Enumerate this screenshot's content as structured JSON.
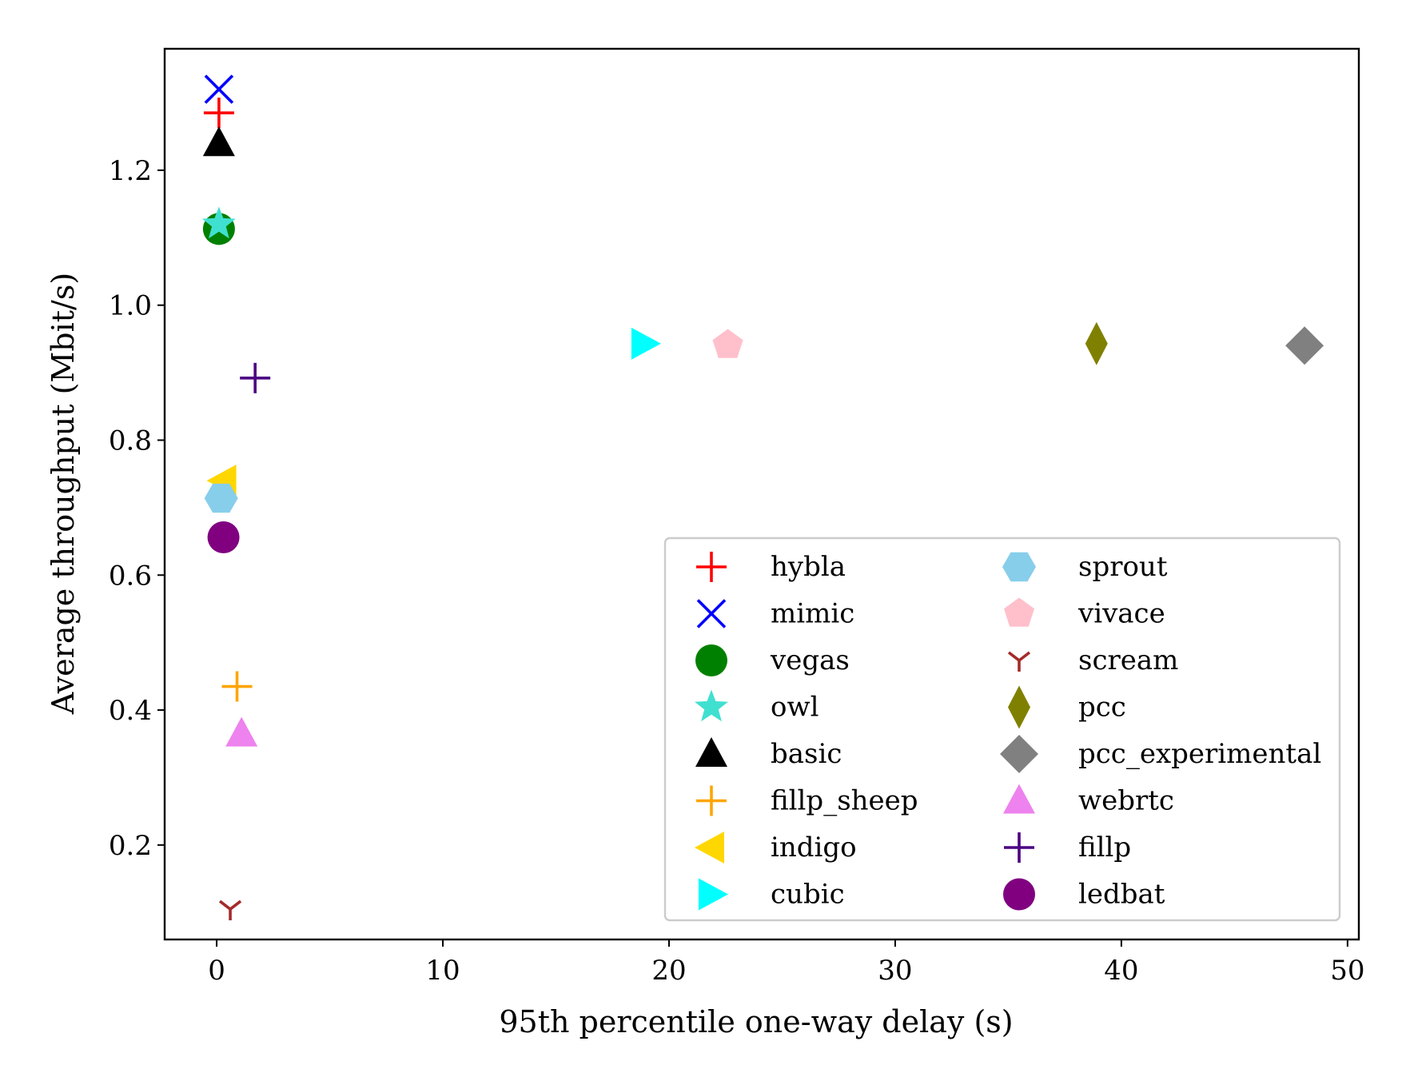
{
  "chart_data": {
    "type": "scatter",
    "xlabel": "95th percentile one-way delay (s)",
    "ylabel": "Average throughput (Mbit/s)",
    "xlim": [
      -2.3,
      50.5
    ],
    "ylim": [
      0.06,
      1.38
    ],
    "xticks": [
      0,
      10,
      20,
      30,
      40,
      50
    ],
    "yticks": [
      0.2,
      0.4,
      0.6,
      0.8,
      1.0,
      1.2
    ],
    "xtick_labels": [
      "0",
      "10",
      "20",
      "30",
      "40",
      "50"
    ],
    "ytick_labels": [
      "0.2",
      "0.4",
      "0.6",
      "0.8",
      "1.0",
      "1.2"
    ],
    "grid": false,
    "legend": {
      "placement": "lower-right",
      "columns": 2
    },
    "series": [
      {
        "name": "hybla",
        "marker": "plus",
        "color": "#ff0000",
        "x": 0.1,
        "y": 1.285
      },
      {
        "name": "mimic",
        "marker": "x",
        "color": "#0000ff",
        "x": 0.1,
        "y": 1.32
      },
      {
        "name": "vegas",
        "marker": "circle",
        "color": "#008000",
        "x": 0.1,
        "y": 1.113
      },
      {
        "name": "owl",
        "marker": "star",
        "color": "#40e0d0",
        "x": 0.1,
        "y": 1.12
      },
      {
        "name": "basic",
        "marker": "triangle-up",
        "color": "#000000",
        "x": 0.1,
        "y": 1.24
      },
      {
        "name": "fillp_sheep",
        "marker": "plus",
        "color": "#ffa500",
        "x": 0.9,
        "y": 0.435
      },
      {
        "name": "indigo",
        "marker": "triangle-left",
        "color": "#ffd700",
        "x": 0.3,
        "y": 0.74
      },
      {
        "name": "cubic",
        "marker": "triangle-right",
        "color": "#00ffff",
        "x": 18.9,
        "y": 0.943
      },
      {
        "name": "sprout",
        "marker": "hexagon",
        "color": "#87ceeb",
        "x": 0.2,
        "y": 0.714
      },
      {
        "name": "vivace",
        "marker": "pentagon",
        "color": "#ffc0cb",
        "x": 22.6,
        "y": 0.941
      },
      {
        "name": "scream",
        "marker": "tri-down",
        "color": "#a52a2a",
        "x": 0.6,
        "y": 0.105
      },
      {
        "name": "pcc",
        "marker": "thin-diamond",
        "color": "#808000",
        "x": 38.9,
        "y": 0.943
      },
      {
        "name": "pcc_experimental",
        "marker": "diamond",
        "color": "#808080",
        "x": 48.1,
        "y": 0.94
      },
      {
        "name": "webrtc",
        "marker": "triangle-up",
        "color": "#ee82ee",
        "x": 1.1,
        "y": 0.365
      },
      {
        "name": "fillp",
        "marker": "plus",
        "color": "#4b0082",
        "x": 1.7,
        "y": 0.892
      },
      {
        "name": "ledbat",
        "marker": "circle",
        "color": "#800080",
        "x": 0.3,
        "y": 0.656
      }
    ]
  }
}
